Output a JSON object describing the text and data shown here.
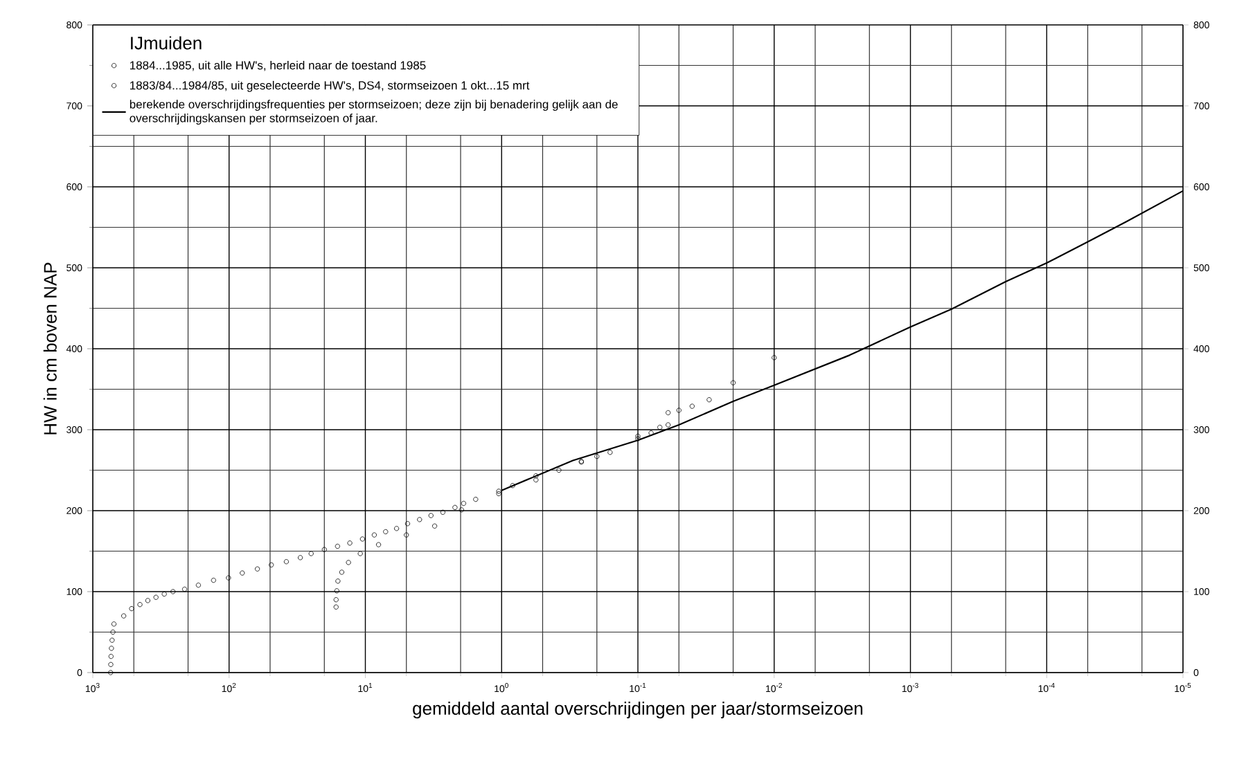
{
  "chart_data": {
    "type": "scatter",
    "xlabel": "gemiddeld aantal overschrijdingen per jaar/stormseizoen",
    "ylabel": "HW in cm boven NAP",
    "legend_title": "IJmuiden",
    "legend": "top left",
    "grid": true,
    "log": "x",
    "xlim": [
      1000,
      1e-05
    ],
    "xticks": [
      {
        "value": 1000,
        "label": "10$^{3}$"
      },
      {
        "value": 100,
        "label": "10$^{2}$"
      },
      {
        "value": 10,
        "label": "10$^{1}$"
      },
      {
        "value": 1,
        "label": "10$^{0}$"
      },
      {
        "value": 0.1,
        "label": "10$^{-1}$"
      },
      {
        "value": 0.01,
        "label": "10$^{-2}$"
      },
      {
        "value": 0.001,
        "label": "10$^{-3}$"
      },
      {
        "value": 0.0001,
        "label": "10$^{-4}$"
      },
      {
        "value": 1e-05,
        "label": "10$^{-5}$"
      }
    ],
    "ylim": [
      0,
      800
    ],
    "yticks": [
      0,
      100,
      200,
      300,
      400,
      500,
      600,
      700,
      800
    ],
    "y2lim": [
      0,
      800
    ],
    "y2ticks": [
      0,
      100,
      200,
      300,
      400,
      500,
      600,
      700,
      800
    ],
    "series": [
      {
        "name": "1884...1985, uit alle HW's, herleid naar de toestand 1985",
        "color": "#000000",
        "marker": "circle",
        "x": [
          740,
          738,
          735,
          730,
          722,
          712,
          700,
          593,
          519,
          451,
          395,
          344,
          299,
          258,
          212,
          168,
          130,
          101,
          80,
          62,
          49,
          38,
          30,
          25,
          20,
          16,
          13,
          10.5,
          8.6,
          7.1,
          5.9,
          4.9,
          4.0,
          3.3,
          2.7,
          2.2,
          1.9,
          1.55,
          1.05,
          0.83,
          0.56,
          0.38,
          0.26,
          0.16,
          0.1,
          0.05,
          0.04,
          0.03,
          0.02,
          0.01
        ],
        "values": [
          0,
          10,
          20,
          30,
          40,
          50,
          60,
          70,
          79,
          84,
          89,
          93,
          97,
          100,
          103,
          108,
          114,
          117,
          123,
          128,
          133,
          137,
          142,
          147,
          152,
          156,
          160,
          165,
          170,
          174,
          178,
          184,
          189,
          194,
          198,
          204,
          209,
          214,
          224,
          231,
          243,
          250,
          260,
          272,
          292,
          324,
          329,
          337,
          358,
          389
        ]
      },
      {
        "name": "1883/84...1984/85, uit geselecteerde HW's, DS4, stormseizoen 1 okt...15 mrt",
        "color": "#000000",
        "marker": "circle",
        "x": [
          16.4,
          16.4,
          16.2,
          15.9,
          14.9,
          13.3,
          10.9,
          8.0,
          5.0,
          3.1,
          1.97,
          1.05,
          0.56,
          0.26,
          0.2,
          0.1,
          0.08,
          0.069,
          0.06,
          0.06
        ],
        "values": [
          81,
          90,
          101,
          113,
          124,
          136,
          147,
          158,
          170,
          181,
          201,
          221,
          238,
          261,
          267,
          289,
          296,
          303,
          306,
          321
        ]
      },
      {
        "name": "berekende overschrijdingsfrequenties per stormseizoen; deze zijn bij benadering gelijk aan de overschrijdingskansen per stormseizoen of jaar.",
        "type": "line",
        "color": "#000000",
        "line_style": "solid",
        "x": [
          1,
          0.3,
          0.1,
          0.05,
          0.02,
          0.01,
          0.0028,
          0.001,
          0.0005,
          0.0002,
          0.0001,
          5e-05,
          2.6e-05,
          1e-05
        ],
        "values": [
          225,
          262,
          287,
          306,
          335,
          355,
          392,
          427,
          449,
          483,
          506,
          532,
          557,
          595
        ]
      }
    ]
  }
}
